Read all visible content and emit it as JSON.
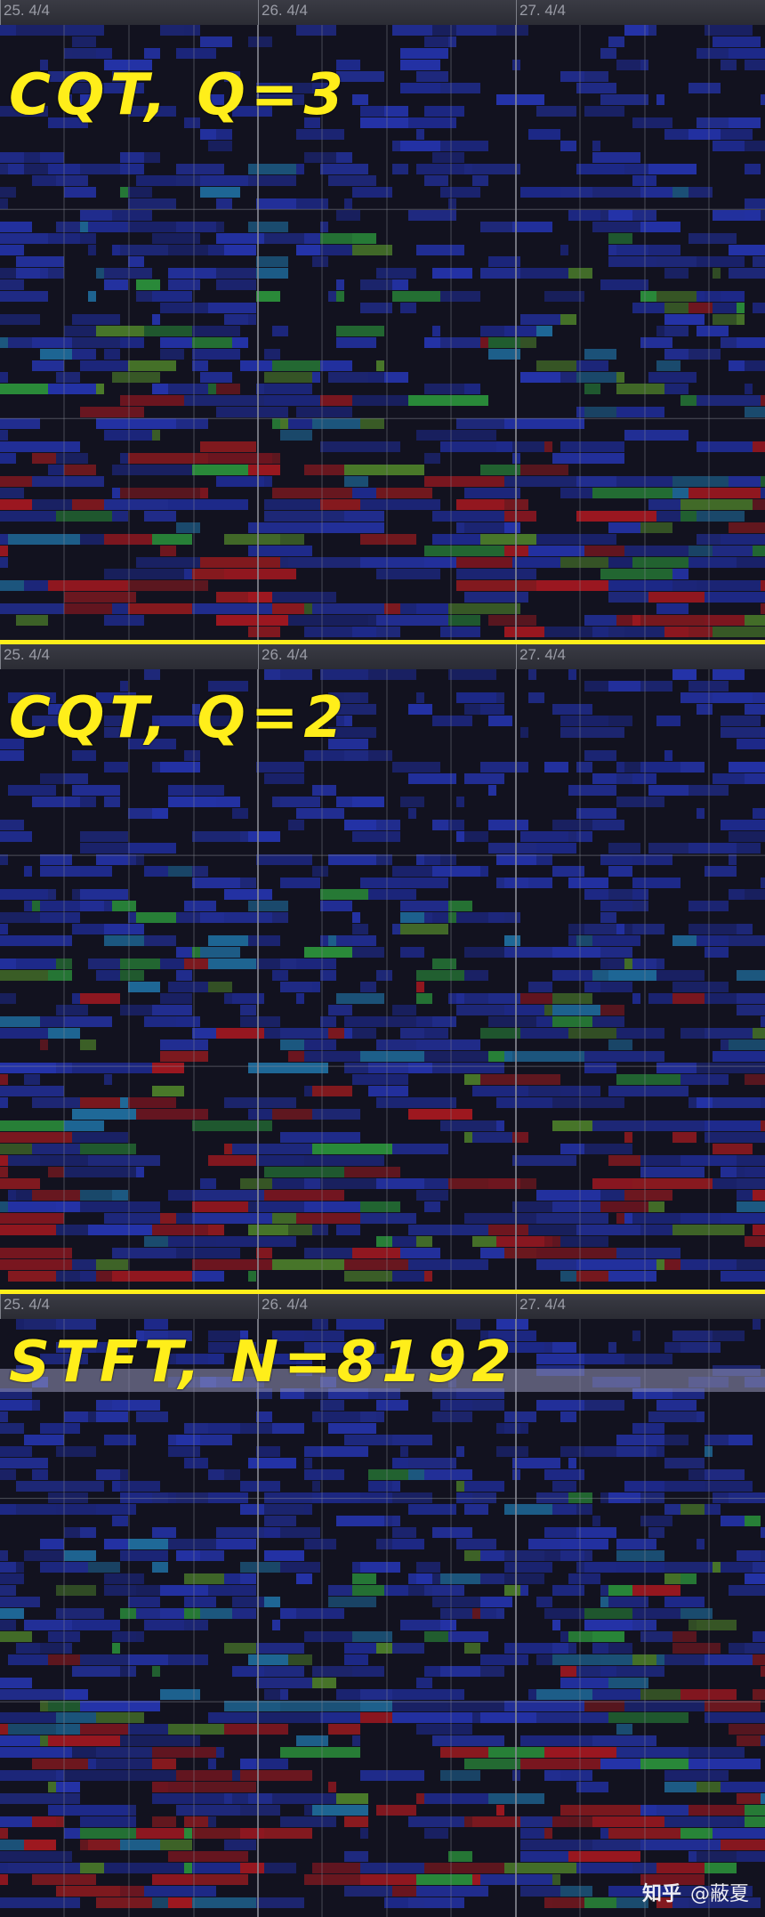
{
  "panels": [
    {
      "annotation": "CQT,  Q=3",
      "ruler": [
        "25. 4/4",
        "26. 4/4",
        "27. 4/4"
      ],
      "seed": 11,
      "density": 0.58
    },
    {
      "annotation": "CQT,  Q=2",
      "ruler": [
        "25. 4/4",
        "26. 4/4",
        "27. 4/4"
      ],
      "seed": 23,
      "density": 0.62
    },
    {
      "annotation": "STFT,  N=8192",
      "ruler": [
        "25. 4/4",
        "26. 4/4",
        "27. 4/4"
      ],
      "seed": 37,
      "density": 0.66
    }
  ],
  "watermark": {
    "logo": "知乎",
    "handle": "@蔽夏"
  },
  "colors": {
    "divider": "#ffee1a",
    "background": "#10101a",
    "low": "#1e2a8c",
    "mid_low": "#1f6a9a",
    "mid": "#2a8c3a",
    "high": "#8c1a1f",
    "grid": "#8a8c96"
  }
}
